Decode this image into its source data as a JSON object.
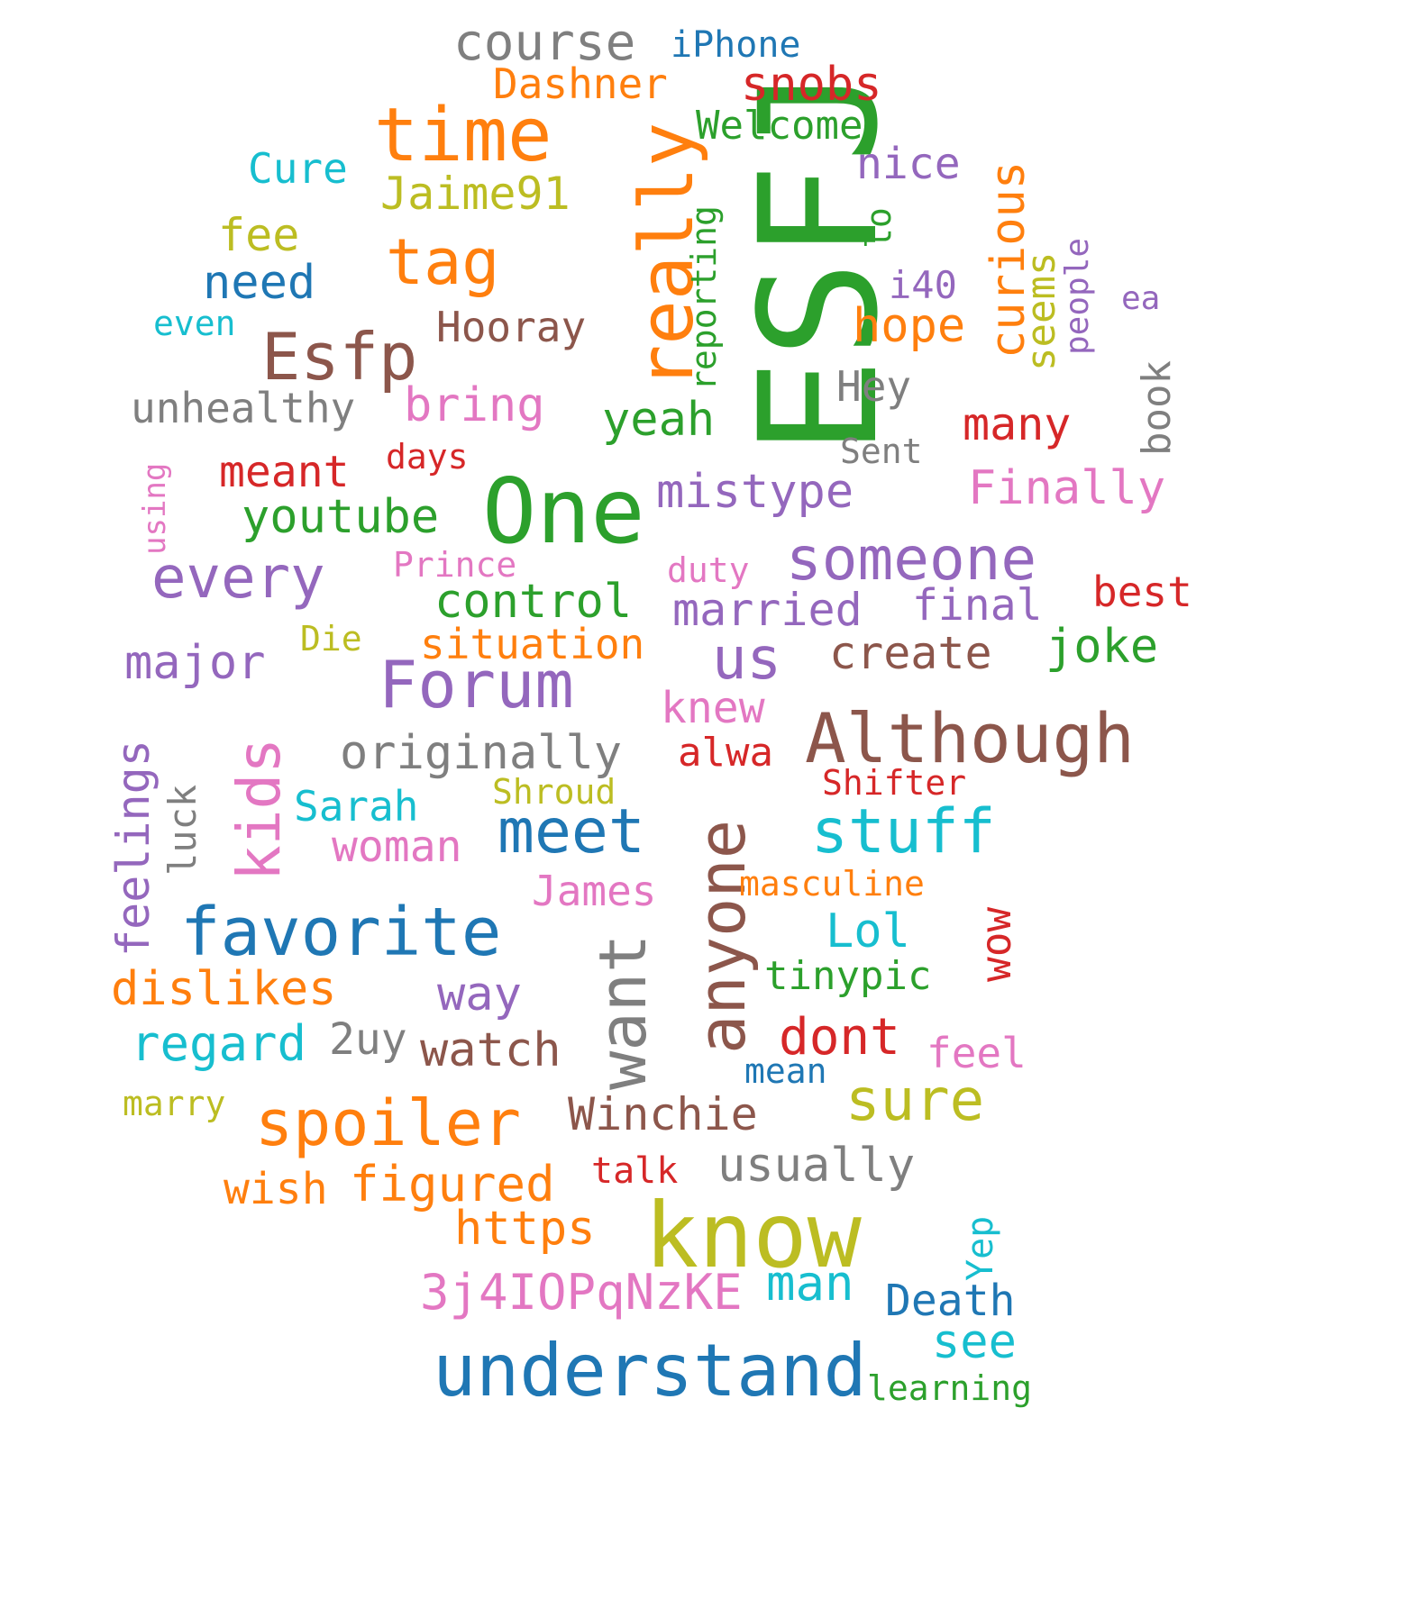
{
  "words": [
    {
      "text": "ESFJ",
      "color": "#2ca02c"
    },
    {
      "text": "One",
      "color": "#2ca02c"
    },
    {
      "text": "know",
      "color": "#bcbd22"
    },
    {
      "text": "time",
      "color": "#ff7f0e"
    },
    {
      "text": "understand",
      "color": "#1f77b4"
    },
    {
      "text": "Although",
      "color": "#8c564b"
    },
    {
      "text": "really",
      "color": "#ff7f0e"
    },
    {
      "text": "Forum",
      "color": "#9467bd"
    },
    {
      "text": "anyone",
      "color": "#8c564b"
    },
    {
      "text": "favorite",
      "color": "#1f77b4"
    },
    {
      "text": "spoiler",
      "color": "#ff7f0e"
    },
    {
      "text": "want",
      "color": "#7f7f7f"
    },
    {
      "text": "Esfp",
      "color": "#8c564b"
    },
    {
      "text": "someone",
      "color": "#9467bd"
    },
    {
      "text": "stuff",
      "color": "#17becf"
    },
    {
      "text": "tag",
      "color": "#ff7f0e"
    },
    {
      "text": "every",
      "color": "#9467bd"
    },
    {
      "text": "meet",
      "color": "#1f77b4"
    },
    {
      "text": "kids",
      "color": "#e377c2"
    },
    {
      "text": "us",
      "color": "#9467bd"
    },
    {
      "text": "sure",
      "color": "#bcbd22"
    },
    {
      "text": "course",
      "color": "#7f7f7f"
    },
    {
      "text": "originally",
      "color": "#7f7f7f"
    },
    {
      "text": "curious",
      "color": "#ff7f0e"
    },
    {
      "text": "control",
      "color": "#2ca02c"
    },
    {
      "text": "mistype",
      "color": "#9467bd"
    },
    {
      "text": "yeah",
      "color": "#2ca02c"
    },
    {
      "text": "bring",
      "color": "#e377c2"
    },
    {
      "text": "snobs",
      "color": "#d62728"
    },
    {
      "text": "hope",
      "color": "#ff7f0e"
    },
    {
      "text": "married",
      "color": "#9467bd"
    },
    {
      "text": "create",
      "color": "#8c564b"
    },
    {
      "text": "watch",
      "color": "#8c564b"
    },
    {
      "text": "dont",
      "color": "#d62728"
    },
    {
      "text": "youtube",
      "color": "#2ca02c"
    },
    {
      "text": "Finally",
      "color": "#e377c2"
    },
    {
      "text": "dislikes",
      "color": "#ff7f0e"
    },
    {
      "text": "regard",
      "color": "#17becf"
    },
    {
      "text": "feelings",
      "color": "#9467bd"
    },
    {
      "text": "major",
      "color": "#9467bd"
    },
    {
      "text": "joke",
      "color": "#2ca02c"
    },
    {
      "text": "many",
      "color": "#d62728"
    },
    {
      "text": "need",
      "color": "#1f77b4"
    },
    {
      "text": "Winchie",
      "color": "#8c564b"
    },
    {
      "text": "usually",
      "color": "#7f7f7f"
    },
    {
      "text": "figured",
      "color": "#ff7f0e"
    },
    {
      "text": "https",
      "color": "#ff7f0e"
    },
    {
      "text": "3j4IOPqNzKE",
      "color": "#e377c2"
    },
    {
      "text": "man",
      "color": "#17becf"
    },
    {
      "text": "see",
      "color": "#17becf"
    },
    {
      "text": "Death",
      "color": "#1f77b4"
    },
    {
      "text": "woman",
      "color": "#e377c2"
    },
    {
      "text": "way",
      "color": "#9467bd"
    },
    {
      "text": "Jaime91",
      "color": "#bcbd22"
    },
    {
      "text": "Dashner",
      "color": "#ff7f0e"
    },
    {
      "text": "Welcome",
      "color": "#2ca02c"
    },
    {
      "text": "nice",
      "color": "#9467bd"
    },
    {
      "text": "final",
      "color": "#9467bd"
    },
    {
      "text": "meant",
      "color": "#d62728"
    },
    {
      "text": "unhealthy",
      "color": "#7f7f7f"
    },
    {
      "text": "Hooray",
      "color": "#8c564b"
    },
    {
      "text": "situation",
      "color": "#ff7f0e"
    },
    {
      "text": "tinypic",
      "color": "#2ca02c"
    },
    {
      "text": "Lol",
      "color": "#17becf"
    },
    {
      "text": "fee",
      "color": "#bcbd22"
    },
    {
      "text": "knew",
      "color": "#e377c2"
    },
    {
      "text": "wow",
      "color": "#d62728"
    },
    {
      "text": "seems",
      "color": "#bcbd22"
    },
    {
      "text": "book",
      "color": "#7f7f7f"
    },
    {
      "text": "best",
      "color": "#d62728"
    },
    {
      "text": "Cure",
      "color": "#17becf"
    },
    {
      "text": "iPhone",
      "color": "#1f77b4"
    },
    {
      "text": "Hey",
      "color": "#7f7f7f"
    },
    {
      "text": "alwa",
      "color": "#d62728"
    },
    {
      "text": "Sarah",
      "color": "#17becf"
    },
    {
      "text": "James",
      "color": "#e377c2"
    },
    {
      "text": "feel",
      "color": "#e377c2"
    },
    {
      "text": "Yep",
      "color": "#17becf"
    },
    {
      "text": "wish",
      "color": "#ff7f0e"
    },
    {
      "text": "2uy",
      "color": "#7f7f7f"
    },
    {
      "text": "luck",
      "color": "#7f7f7f"
    },
    {
      "text": "reporting",
      "color": "#2ca02c"
    },
    {
      "text": "lo",
      "color": "#2ca02c"
    },
    {
      "text": "i40",
      "color": "#9467bd"
    },
    {
      "text": "people",
      "color": "#9467bd"
    },
    {
      "text": "ea",
      "color": "#9467bd"
    },
    {
      "text": "even",
      "color": "#17becf"
    },
    {
      "text": "Sent",
      "color": "#7f7f7f"
    },
    {
      "text": "days",
      "color": "#d62728"
    },
    {
      "text": "using",
      "color": "#e377c2"
    },
    {
      "text": "Prince",
      "color": "#e377c2"
    },
    {
      "text": "duty",
      "color": "#e377c2"
    },
    {
      "text": "Die",
      "color": "#bcbd22"
    },
    {
      "text": "Shifter",
      "color": "#d62728"
    },
    {
      "text": "Shroud",
      "color": "#bcbd22"
    },
    {
      "text": "masculine",
      "color": "#ff7f0e"
    },
    {
      "text": "mean",
      "color": "#1f77b4"
    },
    {
      "text": "marry",
      "color": "#bcbd22"
    },
    {
      "text": "talk",
      "color": "#d62728"
    },
    {
      "text": "learning",
      "color": "#2ca02c"
    }
  ]
}
